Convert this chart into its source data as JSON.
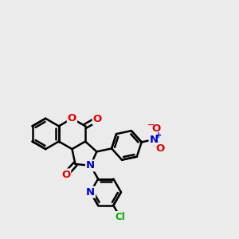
{
  "bg_color": "#ebebeb",
  "bond_color": "#000000",
  "bond_width": 1.8,
  "atom_colors": {
    "O": "#dd0000",
    "N": "#0000cc",
    "Cl": "#00aa00",
    "C": "#000000"
  },
  "font_size_atom": 9.5
}
